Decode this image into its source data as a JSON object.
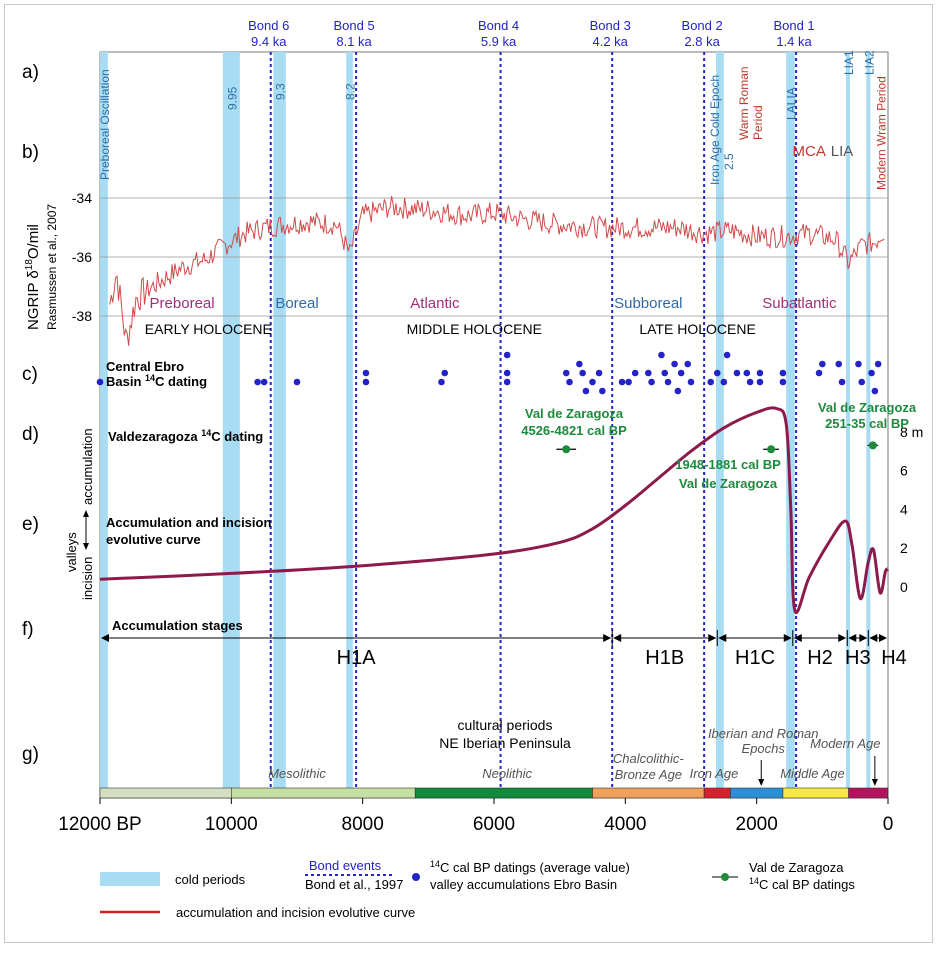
{
  "chart_data": {
    "type": "line",
    "x_axis": {
      "ticks": [
        {
          "x": 12000,
          "label": "12000 BP"
        },
        {
          "x": 10000,
          "label": "10000"
        },
        {
          "x": 8000,
          "label": "8000"
        },
        {
          "x": 6000,
          "label": "6000"
        },
        {
          "x": 4000,
          "label": "4000"
        },
        {
          "x": 2000,
          "label": "2000"
        },
        {
          "x": 0,
          "label": "0"
        }
      ],
      "xlim": [
        12000,
        0
      ]
    },
    "row_letters": [
      "a)",
      "b)",
      "c)",
      "d)",
      "e)",
      "f)",
      "g)"
    ],
    "ngrip": {
      "ylabel_main": "NGRIP δ18O/mil",
      "ylabel_sub": "Rasmussen et al., 2007",
      "ticks": [
        {
          "y": -34,
          "label": "-34"
        },
        {
          "y": -36,
          "label": "-36"
        },
        {
          "y": -38,
          "label": "-38"
        }
      ],
      "ylim": [
        -39.5,
        -33.0
      ],
      "series": [
        {
          "x": 11850,
          "y": -37.6
        },
        {
          "x": 11750,
          "y": -36.5
        },
        {
          "x": 11600,
          "y": -38.9
        },
        {
          "x": 11450,
          "y": -37.4
        },
        {
          "x": 11200,
          "y": -37.0
        },
        {
          "x": 11000,
          "y": -36.7
        },
        {
          "x": 10700,
          "y": -36.3
        },
        {
          "x": 10400,
          "y": -36.1
        },
        {
          "x": 10100,
          "y": -35.6
        },
        {
          "x": 9800,
          "y": -35.2
        },
        {
          "x": 9500,
          "y": -35.0
        },
        {
          "x": 9200,
          "y": -34.9
        },
        {
          "x": 8800,
          "y": -34.8
        },
        {
          "x": 8400,
          "y": -34.9
        },
        {
          "x": 8200,
          "y": -35.9
        },
        {
          "x": 8000,
          "y": -34.6
        },
        {
          "x": 7600,
          "y": -34.3
        },
        {
          "x": 7000,
          "y": -34.4
        },
        {
          "x": 6400,
          "y": -34.6
        },
        {
          "x": 6000,
          "y": -34.5
        },
        {
          "x": 5600,
          "y": -34.7
        },
        {
          "x": 5000,
          "y": -34.9
        },
        {
          "x": 4400,
          "y": -35.0
        },
        {
          "x": 3800,
          "y": -35.0
        },
        {
          "x": 3200,
          "y": -35.0
        },
        {
          "x": 2800,
          "y": -35.2
        },
        {
          "x": 2400,
          "y": -35.1
        },
        {
          "x": 2000,
          "y": -35.3
        },
        {
          "x": 1600,
          "y": -35.3
        },
        {
          "x": 1200,
          "y": -35.2
        },
        {
          "x": 800,
          "y": -35.4
        },
        {
          "x": 600,
          "y": -36.2
        },
        {
          "x": 400,
          "y": -35.6
        },
        {
          "x": 200,
          "y": -35.5
        },
        {
          "x": 50,
          "y": -35.1
        }
      ],
      "color": "#d24a4a"
    },
    "accumulation_curve": {
      "label_main": "Accumulation and incision",
      "label_sub": "evolutive curve",
      "ylabel_valleys": "valleys",
      "ylabel_accumulation": "accumulation",
      "ylabel_incision": "incision",
      "ticks": [
        {
          "y": 8,
          "label": "8 m"
        },
        {
          "y": 6,
          "label": "6"
        },
        {
          "y": 4,
          "label": "4"
        },
        {
          "y": 2,
          "label": "2"
        },
        {
          "y": 0,
          "label": "0"
        }
      ],
      "series": [
        {
          "x": 12000,
          "y": 0.4
        },
        {
          "x": 10000,
          "y": 0.7
        },
        {
          "x": 8000,
          "y": 1.1
        },
        {
          "x": 6000,
          "y": 1.7
        },
        {
          "x": 5000,
          "y": 2.3
        },
        {
          "x": 4500,
          "y": 3.0
        },
        {
          "x": 4000,
          "y": 4.2
        },
        {
          "x": 3500,
          "y": 5.6
        },
        {
          "x": 3000,
          "y": 7.0
        },
        {
          "x": 2500,
          "y": 8.2
        },
        {
          "x": 2000,
          "y": 9.0
        },
        {
          "x": 1700,
          "y": 9.2
        },
        {
          "x": 1550,
          "y": 8.4
        },
        {
          "x": 1480,
          "y": 4.0
        },
        {
          "x": 1420,
          "y": -1.2
        },
        {
          "x": 1200,
          "y": 0.5
        },
        {
          "x": 900,
          "y": 2.3
        },
        {
          "x": 650,
          "y": 3.4
        },
        {
          "x": 550,
          "y": 2.2
        },
        {
          "x": 420,
          "y": -0.6
        },
        {
          "x": 300,
          "y": 1.3
        },
        {
          "x": 220,
          "y": 1.9
        },
        {
          "x": 120,
          "y": -0.3
        },
        {
          "x": 40,
          "y": 0.8
        },
        {
          "x": 0,
          "y": 0.9
        }
      ],
      "color": "#8c1a4b"
    },
    "cold_periods": [
      {
        "x0": 12350,
        "x1": 11880,
        "label": "Preboreal Oscillation"
      },
      {
        "x0": 10130,
        "x1": 9870,
        "label": "9.95"
      },
      {
        "x0": 9360,
        "x1": 9170,
        "label": "9.3"
      },
      {
        "x0": 8250,
        "x1": 8150,
        "label": "8.2"
      },
      {
        "x0": 2620,
        "x1": 2500,
        "label": "Iron Age Cold Epoch 2.5"
      },
      {
        "x0": 1550,
        "x1": 1420,
        "label": "LALIA"
      },
      {
        "x0": 640,
        "x1": 580,
        "label": "LIA1"
      },
      {
        "x0": 330,
        "x1": 270,
        "label": "LIA2"
      }
    ],
    "bond_events": [
      {
        "x": 9400,
        "name": "Bond 6",
        "age": "9.4 ka"
      },
      {
        "x": 8100,
        "name": "Bond 5",
        "age": "8.1 ka"
      },
      {
        "x": 5900,
        "name": "Bond 4",
        "age": "5.9 ka"
      },
      {
        "x": 4200,
        "name": "Bond 3",
        "age": "4.2 ka"
      },
      {
        "x": 2800,
        "name": "Bond 2",
        "age": "2.8 ka"
      },
      {
        "x": 1400,
        "name": "Bond 1",
        "age": "1.4 ka"
      }
    ],
    "climate_periods": [
      {
        "x": 10750,
        "label": "Preboreal",
        "color": "#a0307a"
      },
      {
        "x": 9000,
        "label": "Boreal",
        "color": "#2e6aa8"
      },
      {
        "x": 6900,
        "label": "Atlantic",
        "color": "#a0307a"
      },
      {
        "x": 3650,
        "label": "Subboreal",
        "color": "#2e6aa8"
      },
      {
        "x": 1350,
        "label": "Subatlantic",
        "color": "#a0307a"
      }
    ],
    "epochs": [
      {
        "x": 10350,
        "label": "EARLY HOLOCENE"
      },
      {
        "x": 6300,
        "label": "MIDDLE HOLOCENE"
      },
      {
        "x": 2900,
        "label": "LATE HOLOCENE"
      }
    ],
    "period_annotations": [
      {
        "x": 1950,
        "label_lines": [
          "Warm Roman",
          "Period"
        ],
        "color": "#c0392b"
      },
      {
        "x": 1200,
        "label_lines": [
          "MCA"
        ],
        "color": "#c0392b"
      },
      {
        "x": 700,
        "label_lines": [
          "LIA"
        ],
        "color": "#555555"
      },
      {
        "x": 100,
        "label_lines": [
          "Modern Wram Period"
        ],
        "color": "#c0392b"
      }
    ],
    "ebro_dates": {
      "label_line1": "Central Ebro",
      "label_line2": "Basin 14C dating",
      "color": "#2323c8",
      "points": [
        {
          "x": 12000,
          "lvl": 0
        },
        {
          "x": 9600,
          "lvl": 0
        },
        {
          "x": 9500,
          "lvl": 0
        },
        {
          "x": 9000,
          "lvl": 0
        },
        {
          "x": 7950,
          "lvl": 1
        },
        {
          "x": 7950,
          "lvl": 0
        },
        {
          "x": 6750,
          "lvl": 1
        },
        {
          "x": 6800,
          "lvl": 0
        },
        {
          "x": 5800,
          "lvl": 3
        },
        {
          "x": 5800,
          "lvl": 1
        },
        {
          "x": 5800,
          "lvl": 0
        },
        {
          "x": 4900,
          "lvl": 1
        },
        {
          "x": 4850,
          "lvl": 0
        },
        {
          "x": 4700,
          "lvl": 2
        },
        {
          "x": 4650,
          "lvl": 1
        },
        {
          "x": 4600,
          "lvl": -1
        },
        {
          "x": 4500,
          "lvl": 0
        },
        {
          "x": 4400,
          "lvl": 1
        },
        {
          "x": 4350,
          "lvl": -1
        },
        {
          "x": 4050,
          "lvl": 0
        },
        {
          "x": 3950,
          "lvl": 0
        },
        {
          "x": 3850,
          "lvl": 1
        },
        {
          "x": 3650,
          "lvl": 1
        },
        {
          "x": 3600,
          "lvl": 0
        },
        {
          "x": 3450,
          "lvl": 3
        },
        {
          "x": 3400,
          "lvl": 1
        },
        {
          "x": 3350,
          "lvl": 0
        },
        {
          "x": 3250,
          "lvl": 2
        },
        {
          "x": 3200,
          "lvl": -1
        },
        {
          "x": 3150,
          "lvl": 1
        },
        {
          "x": 3050,
          "lvl": 2
        },
        {
          "x": 3000,
          "lvl": 0
        },
        {
          "x": 2700,
          "lvl": 0
        },
        {
          "x": 2600,
          "lvl": 1
        },
        {
          "x": 2500,
          "lvl": 0
        },
        {
          "x": 2450,
          "lvl": 3
        },
        {
          "x": 2300,
          "lvl": 1
        },
        {
          "x": 2150,
          "lvl": 1
        },
        {
          "x": 2100,
          "lvl": 0
        },
        {
          "x": 1950,
          "lvl": 1
        },
        {
          "x": 1950,
          "lvl": 0
        },
        {
          "x": 1600,
          "lvl": 1
        },
        {
          "x": 1600,
          "lvl": 0
        },
        {
          "x": 1000,
          "lvl": 2
        },
        {
          "x": 1050,
          "lvl": 1
        },
        {
          "x": 750,
          "lvl": 2
        },
        {
          "x": 700,
          "lvl": 0
        },
        {
          "x": 450,
          "lvl": 2
        },
        {
          "x": 400,
          "lvl": 0
        },
        {
          "x": 250,
          "lvl": 1
        },
        {
          "x": 200,
          "lvl": -1
        },
        {
          "x": 150,
          "lvl": 2
        }
      ]
    },
    "valdezaragoza": {
      "label": "Valdezaragoza 14C dating",
      "color": "#1e8a3c",
      "points": [
        {
          "x": 4900,
          "y": 7.1,
          "err": 150,
          "label_lines": [
            "Val de Zaragoza",
            "4526-4821 cal BP"
          ]
        },
        {
          "x": 1780,
          "y": 7.1,
          "err": 120,
          "label_lines": [
            "1948-1881 cal BP",
            "Val de Zaragoza"
          ]
        },
        {
          "x": 230,
          "y": 7.3,
          "err": 80,
          "label_lines": [
            "Val de Zaragoza",
            "251-35 cal BP"
          ]
        }
      ]
    },
    "accumulation_stages": {
      "label": "Accumulation stages",
      "stages": [
        {
          "x0": 12000,
          "x1": 4200,
          "label": "H1A"
        },
        {
          "x0": 4200,
          "x1": 2600,
          "label": "H1B"
        },
        {
          "x0": 2600,
          "x1": 1450,
          "label": "H1C"
        },
        {
          "x0": 1450,
          "x1": 620,
          "label": "H2"
        },
        {
          "x0": 620,
          "x1": 300,
          "label": "H3"
        },
        {
          "x0": 300,
          "x1": 0,
          "label": "H4"
        }
      ]
    },
    "cultural": {
      "title_line1": "cultural periods",
      "title_line2": "NE Iberian Peninsula",
      "bars": [
        {
          "x0": 12000,
          "x1": 10000,
          "color": "#d3dfc0"
        },
        {
          "x0": 10000,
          "x1": 7200,
          "color": "#c5e0a5"
        },
        {
          "x0": 7200,
          "x1": 4500,
          "color": "#118a3c"
        },
        {
          "x0": 4500,
          "x1": 2800,
          "color": "#f0a05a"
        },
        {
          "x0": 2800,
          "x1": 2400,
          "color": "#d91e2e"
        },
        {
          "x0": 2400,
          "x1": 1600,
          "color": "#2a8fd8"
        },
        {
          "x0": 1600,
          "x1": 600,
          "color": "#f7ea3e"
        },
        {
          "x0": 600,
          "x1": 0,
          "color": "#b3135c"
        }
      ],
      "labels": [
        {
          "x": 9000,
          "lines": [
            "Mesolithic"
          ]
        },
        {
          "x": 5800,
          "lines": [
            "Neolithic"
          ]
        },
        {
          "x": 3650,
          "lines": [
            "Chalcolithic-",
            "Bronze Age"
          ]
        },
        {
          "x": 2650,
          "lines": [
            "Iron Age"
          ]
        },
        {
          "x": 1900,
          "lines": [
            "Iberian and Roman",
            "Epochs"
          ]
        },
        {
          "x": 1150,
          "lines": [
            "Middle Age"
          ]
        },
        {
          "x": 650,
          "lines": [
            "Modern Age"
          ]
        }
      ]
    },
    "legend": {
      "cold_periods": "cold periods",
      "bond_title": "Bond events",
      "bond_ref": "Bond et al., 1997",
      "c14_line1": "14C cal BP datings (average value)",
      "c14_line2": "valley accumulations Ebro Basin",
      "vz_line1": "Val de Zaragoza",
      "vz_line2": "14C cal BP datings",
      "curve": "accumulation and incision evolutive curve"
    },
    "colors": {
      "cold": "#a8dcf2",
      "bond": "#2323c8",
      "curve": "#8c1a4b",
      "ngrip": "#d24a4a",
      "green": "#1e8a3c"
    }
  }
}
